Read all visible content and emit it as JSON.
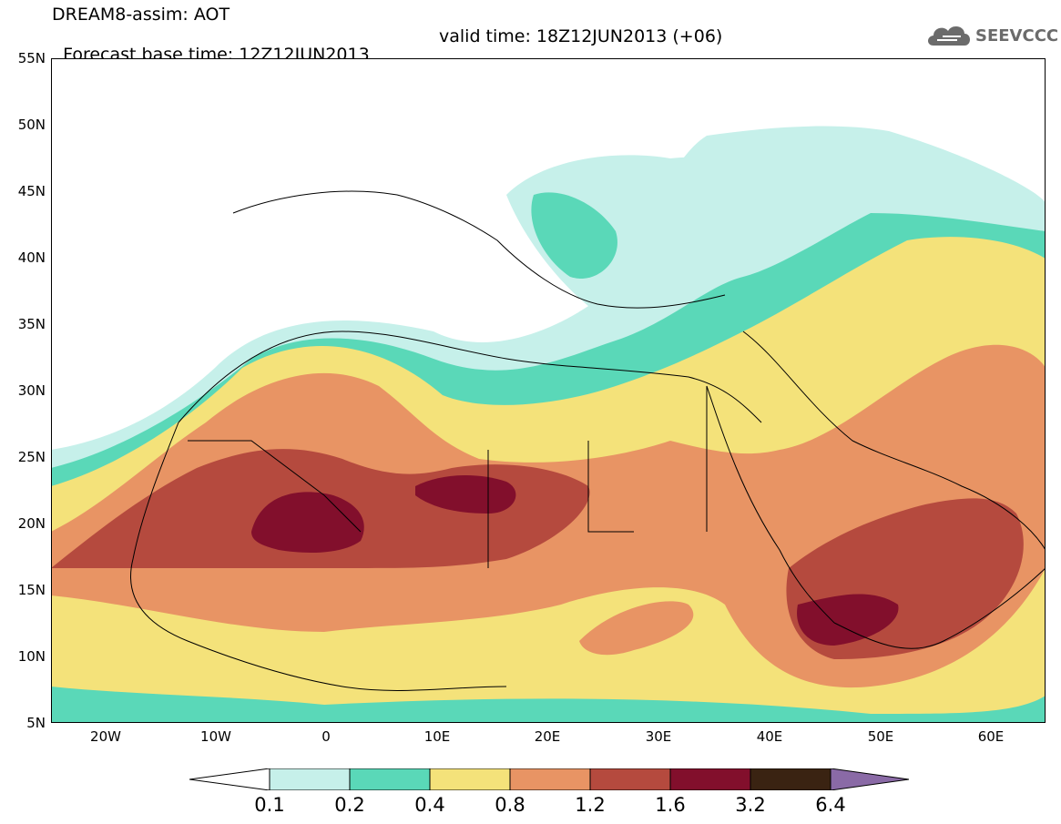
{
  "header": {
    "title": "DREAM8-assim: AOT",
    "base_time": "Forecast base time: 12Z12JUN2013",
    "valid_time": "valid time: 18Z12JUN2013 (+06)"
  },
  "logo": {
    "text": "SEEVCCC",
    "icon": "cloud-icon"
  },
  "axes": {
    "lat_labels": [
      "55N",
      "50N",
      "45N",
      "40N",
      "35N",
      "30N",
      "25N",
      "20N",
      "15N",
      "10N",
      "5N"
    ],
    "lon_labels": [
      "20W",
      "10W",
      "0",
      "10E",
      "20E",
      "30E",
      "40E",
      "50E",
      "60E"
    ]
  },
  "colorbar": {
    "labels": [
      "0.1",
      "0.2",
      "0.4",
      "0.8",
      "1.2",
      "1.6",
      "3.2",
      "6.4"
    ],
    "colors": [
      "#ffffff",
      "#c6f0ea",
      "#5ad8b8",
      "#f4e27a",
      "#e89464",
      "#b54a3e",
      "#820f2c",
      "#3a2312",
      "#8a6aa6"
    ]
  },
  "map": {
    "variable": "AOT",
    "colors": {
      "c01": "#c6f0ea",
      "c02": "#5ad8b8",
      "c04": "#f4e27a",
      "c08": "#e89464",
      "c12": "#b54a3e",
      "c16": "#820f2c",
      "land": "#000000"
    }
  }
}
